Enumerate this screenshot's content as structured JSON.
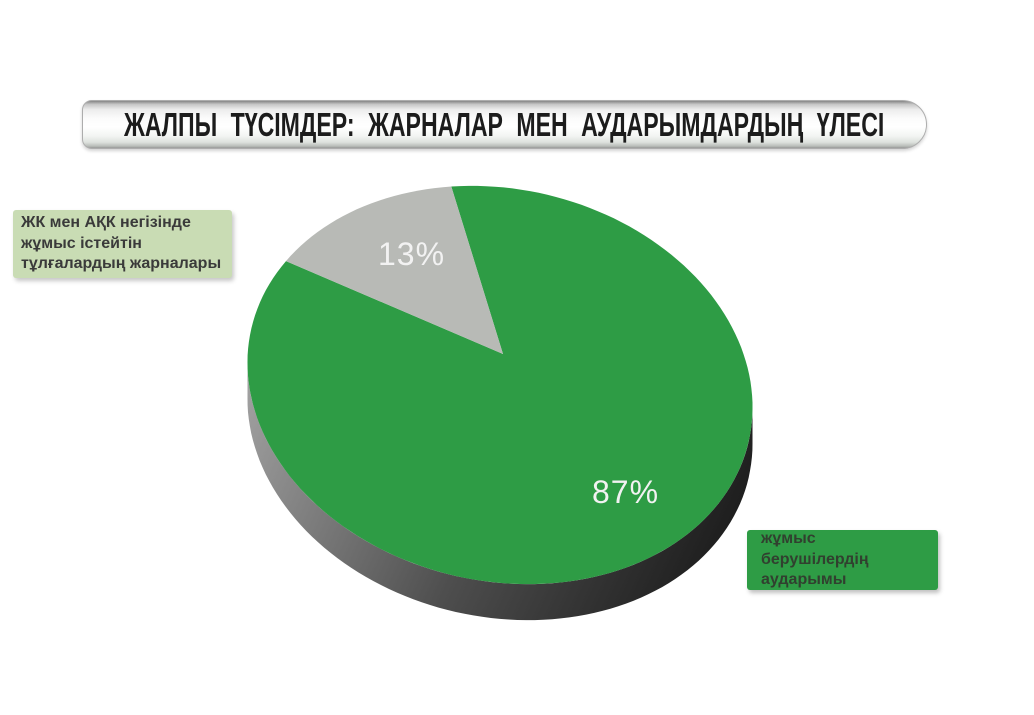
{
  "chart_data": {
    "type": "pie",
    "style": "3d",
    "title": "ЖАЛПЫ ТҮСІМДЕР: ЖАРНАЛАР МЕН АУДАРЫМДАРДЫҢ ҮЛЕСІ",
    "slices": [
      {
        "label": "жұмыс берушілердің аударымы",
        "value": 87,
        "pct_label": "87%",
        "color": "#2e9c45"
      },
      {
        "label": "ЖК мен АҚК негізінде жұмыс істейтін тұлғалардың жарналары",
        "value": 13,
        "pct_label": "13%",
        "color": "#b8bab6"
      }
    ],
    "legend_position": "callout-boxes"
  },
  "callouts": {
    "left": {
      "lines": [
        "ЖК мен АҚК негізінде",
        "жұмыс істейтін",
        "тұлғалардың жарналары"
      ],
      "bg": "#c9dcb4",
      "text_color": "#3a3a3a"
    },
    "right": {
      "lines": [
        "жұмыс берушілердің",
        "аударымы"
      ],
      "bg": "#2e9c45",
      "text_color": "#31402f"
    }
  },
  "colors": {
    "pie_green": "#2e9c45",
    "pie_gray": "#b8bab6",
    "side_light": "#a2a2a2",
    "side_mid": "#4e4e4e",
    "side_dark": "#161616",
    "pct_text": "#f2f2f2",
    "title_text": "#1c1c1c"
  }
}
